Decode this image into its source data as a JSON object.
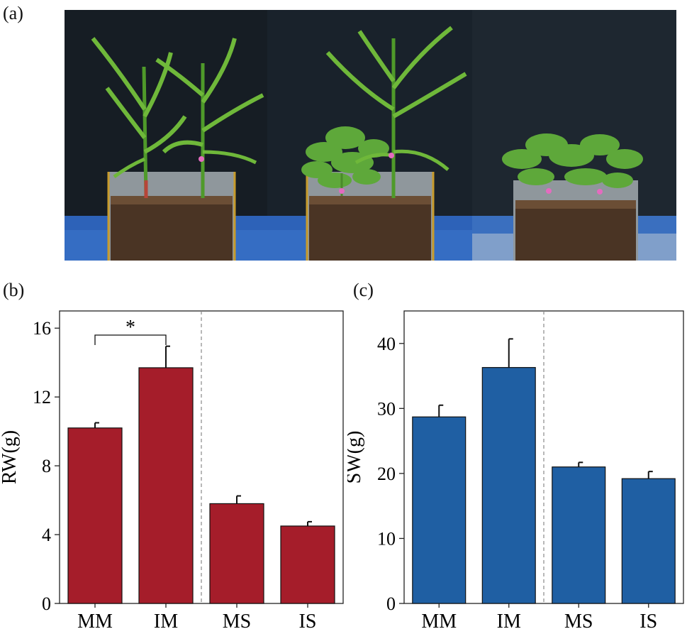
{
  "figure": {
    "panel_a_label": "(a)",
    "panel_b_label": "(b)",
    "panel_c_label": "(c)",
    "photos": [
      {
        "name": "maize-monoculture-photo",
        "plants": "maize-maize"
      },
      {
        "name": "intercrop-photo",
        "plants": "soybean-maize"
      },
      {
        "name": "soybean-monoculture-photo",
        "plants": "soybean-soybean"
      }
    ]
  },
  "chart_data": [
    {
      "type": "bar",
      "panel": "(b)",
      "categories": [
        "MM",
        "IM",
        "MS",
        "IS"
      ],
      "values": [
        10.2,
        13.7,
        5.8,
        4.5
      ],
      "errors": [
        0.3,
        1.25,
        0.45,
        0.25
      ],
      "ylabel": "RW(g)",
      "xlabel": "",
      "ylim": [
        0,
        17
      ],
      "yticks": [
        "0",
        "4",
        "8",
        "12",
        "16"
      ],
      "color": "#a51d2a",
      "separator_after_index": 1,
      "significance": {
        "from": "MM",
        "to": "IM",
        "label": "*"
      }
    },
    {
      "type": "bar",
      "panel": "(c)",
      "categories": [
        "MM",
        "IM",
        "MS",
        "IS"
      ],
      "values": [
        28.7,
        36.3,
        21.0,
        19.2
      ],
      "errors": [
        1.8,
        4.4,
        0.7,
        1.1
      ],
      "ylabel": "SW(g)",
      "xlabel": "",
      "ylim": [
        0,
        45
      ],
      "yticks": [
        "0",
        "10",
        "20",
        "30",
        "40"
      ],
      "color": "#1f5fa3",
      "separator_after_index": 1
    }
  ]
}
